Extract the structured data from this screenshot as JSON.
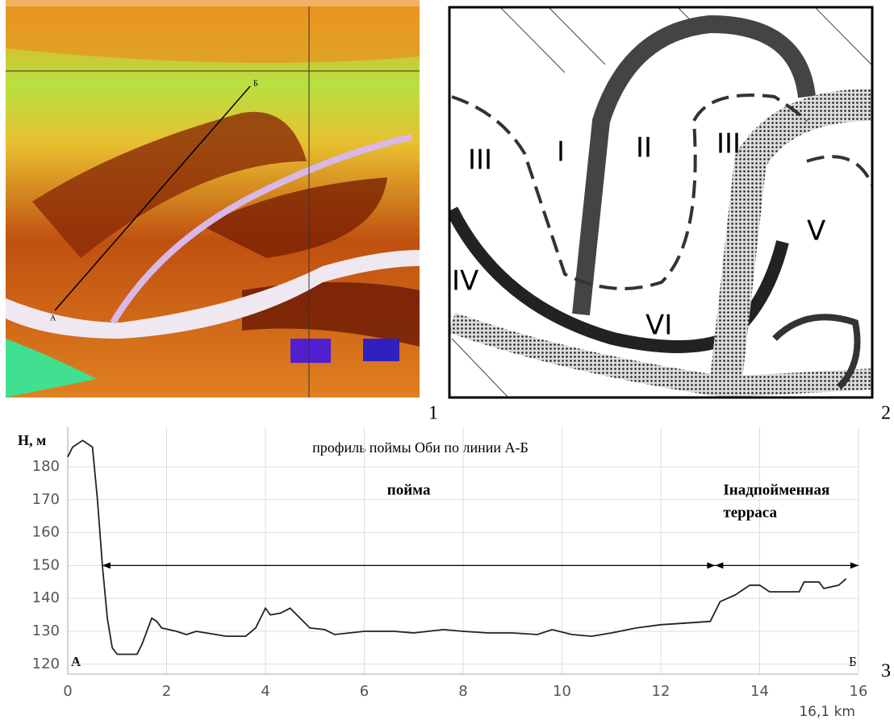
{
  "panels": {
    "image_labels": [
      "1",
      "2",
      "3"
    ],
    "map_points": [
      "А",
      "Б"
    ],
    "zones": [
      "III",
      "I",
      "II",
      "III",
      "IV",
      "V",
      "VI"
    ]
  },
  "chart_data": {
    "type": "line",
    "title": "профиль поймы Оби по линии А-Б",
    "y_label": "H, м",
    "x_unit_label": "16,1 km",
    "start_label": "А",
    "end_label": "Б",
    "color": "#222222",
    "x": [
      0,
      0.1,
      0.3,
      0.5,
      0.6,
      0.7,
      0.8,
      0.9,
      1.0,
      1.4,
      1.5,
      1.7,
      1.8,
      1.9,
      2.2,
      2.4,
      2.6,
      2.8,
      3.0,
      3.2,
      3.6,
      3.8,
      4.0,
      4.1,
      4.3,
      4.5,
      4.7,
      4.9,
      5.2,
      5.4,
      6.0,
      6.6,
      7.0,
      7.6,
      8.0,
      8.5,
      9.0,
      9.5,
      9.8,
      10.2,
      10.6,
      11.0,
      11.5,
      12.0,
      12.5,
      13.0,
      13.2,
      13.5,
      13.8,
      14.0,
      14.2,
      14.8,
      14.9,
      15.2,
      15.3,
      15.6,
      15.75
    ],
    "values": [
      183,
      186,
      188,
      186,
      170,
      150,
      134,
      125,
      123,
      123,
      126,
      134,
      133,
      131,
      130,
      129,
      130,
      129.5,
      129,
      128.5,
      128.5,
      131,
      137,
      135,
      135.5,
      137,
      134,
      131,
      130.5,
      129,
      130,
      130,
      129.5,
      130.5,
      130,
      129.5,
      129.5,
      129,
      130.5,
      129,
      128.5,
      129.5,
      131,
      132,
      132.5,
      133,
      139,
      141,
      144,
      144,
      142,
      142,
      145,
      145,
      143,
      144,
      146
    ],
    "xlim": [
      0,
      16
    ],
    "xticks": [
      0,
      2,
      4,
      6,
      8,
      10,
      12,
      14,
      16
    ],
    "ylim": [
      117,
      192
    ],
    "yticks": [
      120,
      130,
      140,
      150,
      160,
      170,
      180
    ],
    "grid": true,
    "annotations": [
      {
        "text": [
          "пойма"
        ],
        "from": 0.7,
        "to": 13.1,
        "y": 150
      },
      {
        "text": [
          "Iнадпойменная",
          "терраса"
        ],
        "from": 13.1,
        "to": 16,
        "y": 150
      }
    ]
  }
}
